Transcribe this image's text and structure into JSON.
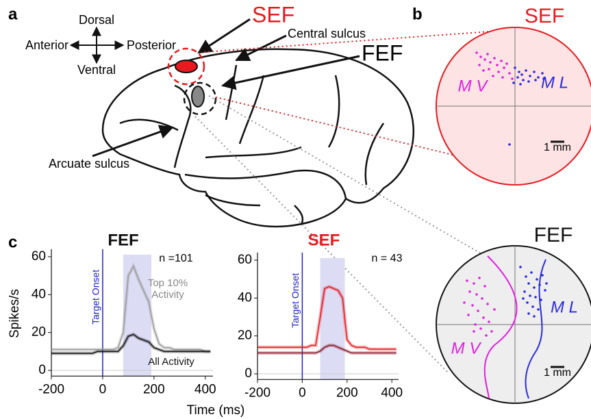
{
  "panel_a": {
    "label": "a",
    "dorsal": "Dorsal",
    "ventral": "Ventral",
    "anterior": "Anterior",
    "posterior": "Posterior",
    "sef": "SEF",
    "fef": "FEF",
    "central_sulcus": "Central sulcus",
    "arcuate_sulcus": "Arcuate sulcus"
  },
  "panel_b": {
    "label": "b",
    "maps": [
      {
        "title": "SEF",
        "title_color": "#e8191f",
        "scale_label": "1 mm",
        "series": [
          {
            "name": "M V",
            "color": "#e020e0",
            "x": [
              -2.8,
              -2.5,
              -2.2,
              -2.0,
              -1.8,
              -1.5,
              -1.3,
              -1.0,
              -0.8,
              -2.6,
              -1.9,
              -1.2,
              -0.6,
              -0.4,
              -1.6,
              -2.3,
              -0.9,
              -0.2
            ],
            "y": [
              3.9,
              3.6,
              3.4,
              3.8,
              3.2,
              3.5,
              3.0,
              3.3,
              2.8,
              3.0,
              2.7,
              2.5,
              3.1,
              2.4,
              2.2,
              2.6,
              2.1,
              2.0
            ]
          },
          {
            "name": "M L",
            "color": "#2a2ae0",
            "x": [
              0.0,
              0.3,
              0.5,
              0.8,
              1.1,
              1.4,
              1.7,
              2.0,
              0.2,
              0.6,
              1.0,
              1.5,
              2.1,
              -0.1,
              0.4,
              -0.4
            ],
            "y": [
              2.8,
              2.5,
              2.3,
              2.6,
              2.2,
              2.5,
              2.1,
              2.4,
              2.1,
              1.9,
              1.8,
              1.9,
              2.0,
              1.7,
              1.6,
              -2.8
            ]
          }
        ]
      },
      {
        "title": "FEF",
        "title_color": "#111111",
        "scale_label": "1 mm",
        "series": [
          {
            "name": "M V",
            "color": "#e020e0",
            "x": [
              -3.5,
              -3.0,
              -2.6,
              -2.2,
              -3.3,
              -2.8,
              -2.4,
              -3.7,
              -3.1,
              -2.0,
              -2.7,
              -3.4,
              -2.3,
              -1.9,
              -2.9,
              -2.5,
              -1.7,
              -2.1,
              -3.0,
              -1.5
            ],
            "y": [
              3.2,
              3.0,
              3.4,
              2.8,
              2.4,
              2.2,
              1.9,
              1.6,
              1.4,
              1.5,
              1.0,
              0.7,
              0.5,
              0.2,
              0.0,
              -0.3,
              -0.5,
              -0.8,
              -0.5,
              1.1
            ]
          },
          {
            "name": "M L",
            "color": "#2a2ae0",
            "x": [
              0.4,
              0.8,
              1.2,
              1.6,
              2.0,
              1.0,
              1.4,
              1.8,
              2.2,
              0.7,
              1.1,
              1.5,
              1.9,
              0.9,
              1.3,
              1.7,
              1.0,
              1.4,
              0.6,
              2.3
            ],
            "y": [
              4.2,
              3.5,
              3.8,
              3.3,
              3.6,
              3.0,
              2.7,
              2.9,
              2.5,
              2.4,
              2.1,
              2.0,
              1.8,
              1.6,
              1.3,
              1.1,
              0.8,
              0.6,
              1.9,
              3.0
            ]
          }
        ]
      }
    ]
  },
  "panel_c": {
    "label": "c",
    "x_label": "Time (ms)",
    "y_label": "Spikes/s"
  },
  "chart_data": [
    {
      "type": "line",
      "title": "FEF",
      "title_color": "#111111",
      "annotation": "n =101",
      "onset": 0,
      "onset_label": "Target Onset",
      "highlight": [
        80,
        190
      ],
      "xlim": [
        -200,
        430
      ],
      "ylim": [
        -3,
        64
      ],
      "xticks": [
        -200,
        0,
        200,
        400
      ],
      "yticks": [
        0,
        20,
        40,
        60
      ],
      "x": [
        -200,
        -180,
        -160,
        -140,
        -120,
        -100,
        -80,
        -60,
        -40,
        -20,
        0,
        20,
        40,
        60,
        80,
        100,
        120,
        140,
        160,
        180,
        200,
        220,
        240,
        260,
        280,
        300,
        320,
        340,
        360,
        380,
        400,
        420
      ],
      "series": [
        {
          "name": "Top 10% Activity",
          "color": "#9a9a9a",
          "values": [
            11,
            11,
            11,
            11,
            11,
            11,
            11,
            11,
            11,
            11,
            11,
            11,
            11,
            12,
            20,
            50,
            55,
            48,
            42,
            36,
            22,
            14,
            12,
            12,
            11,
            11,
            11,
            11,
            11,
            11,
            10,
            10
          ]
        },
        {
          "name": "All Activity",
          "color": "#111111",
          "values": [
            9,
            9,
            9,
            9,
            9,
            9,
            9,
            9,
            9,
            10,
            10,
            10,
            10,
            10,
            13,
            18,
            19,
            17,
            16,
            15,
            12,
            11,
            10,
            10,
            10,
            10,
            10,
            10,
            10,
            10,
            10,
            10
          ]
        }
      ]
    },
    {
      "type": "line",
      "title": "SEF",
      "title_color": "#e8191f",
      "annotation": "n = 43",
      "onset": 0,
      "onset_label": "Target Onset",
      "highlight": [
        80,
        190
      ],
      "xlim": [
        -200,
        430
      ],
      "ylim": [
        -3,
        64
      ],
      "xticks": [
        -200,
        0,
        200,
        400
      ],
      "yticks": [
        0,
        20,
        40,
        60
      ],
      "x": [
        -200,
        -180,
        -160,
        -140,
        -120,
        -100,
        -80,
        -60,
        -40,
        -20,
        0,
        20,
        40,
        60,
        80,
        100,
        120,
        140,
        160,
        180,
        200,
        220,
        240,
        260,
        280,
        300,
        320,
        340,
        360,
        380,
        400,
        420
      ],
      "series": [
        {
          "color": "#e8191f",
          "values": [
            14,
            14,
            14,
            14,
            14,
            14,
            14,
            14,
            14,
            14,
            14,
            14,
            15,
            15,
            30,
            45,
            46,
            45,
            44,
            40,
            18,
            15,
            14,
            14,
            14,
            13,
            13,
            13,
            13,
            13,
            13,
            13
          ]
        },
        {
          "color": "#8a1a2a",
          "values": [
            11,
            11,
            11,
            11,
            11,
            11,
            11,
            11,
            11,
            11,
            11,
            11,
            11,
            11,
            12,
            14,
            15,
            15,
            14,
            13,
            12,
            11,
            11,
            11,
            11,
            11,
            11,
            11,
            11,
            11,
            11,
            11
          ]
        }
      ]
    }
  ]
}
